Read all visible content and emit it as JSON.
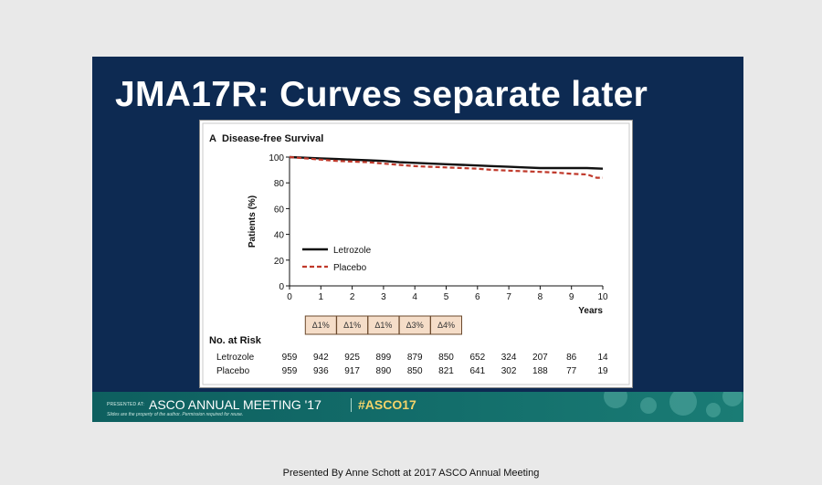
{
  "slide": {
    "title": "JMA17R:  Curves separate later",
    "presenter_caption": "Presented By Anne Schott at 2017 ASCO Annual Meeting"
  },
  "footer": {
    "presented_at_label": "PRESENTED AT:",
    "meeting_name": "ASCO ANNUAL MEETING '17",
    "hashtag": "#ASCO17",
    "disclaimer": "Slides are the property of the author. Permission required for reuse."
  },
  "colors": {
    "slide_background": "#0d2a52",
    "footer_teal": "#136e6b",
    "hashtag_yellow": "#f2d36a",
    "letrozole_line": "#111111",
    "placebo_line": "#c0392b",
    "delta_box_fill": "#f5ddc8",
    "delta_box_border": "#6b4a2e"
  },
  "chart_data": {
    "type": "line",
    "panel_letter": "A",
    "title": "Disease-free Survival",
    "xlabel": "Years",
    "ylabel": "Patients (%)",
    "xlim": [
      0,
      10
    ],
    "ylim": [
      0,
      100
    ],
    "x_ticks": [
      0,
      1,
      2,
      3,
      4,
      5,
      6,
      7,
      8,
      9,
      10
    ],
    "y_ticks": [
      0,
      20,
      40,
      60,
      80,
      100
    ],
    "grid": false,
    "legend_position": "lower-left",
    "series": [
      {
        "name": "Letrozole",
        "style": "solid",
        "color": "#111111",
        "points": [
          [
            0,
            100
          ],
          [
            0.5,
            99.5
          ],
          [
            1,
            99
          ],
          [
            1.5,
            98.5
          ],
          [
            2,
            98
          ],
          [
            2.5,
            97.5
          ],
          [
            3,
            97
          ],
          [
            3.5,
            96
          ],
          [
            4,
            95.5
          ],
          [
            4.5,
            95
          ],
          [
            5,
            94.5
          ],
          [
            5.5,
            94
          ],
          [
            6,
            93.5
          ],
          [
            6.5,
            93
          ],
          [
            7,
            92.5
          ],
          [
            7.5,
            92
          ],
          [
            8,
            91.5
          ],
          [
            8.5,
            91.5
          ],
          [
            9,
            91.5
          ],
          [
            9.5,
            91.5
          ],
          [
            10,
            91
          ]
        ]
      },
      {
        "name": "Placebo",
        "style": "dashed",
        "color": "#c0392b",
        "points": [
          [
            0,
            100
          ],
          [
            0.5,
            99
          ],
          [
            1,
            98
          ],
          [
            1.5,
            97
          ],
          [
            2,
            96.5
          ],
          [
            2.5,
            96
          ],
          [
            3,
            95
          ],
          [
            3.5,
            94
          ],
          [
            4,
            93
          ],
          [
            4.5,
            92.5
          ],
          [
            5,
            92
          ],
          [
            5.5,
            91.5
          ],
          [
            6,
            91
          ],
          [
            6.5,
            90
          ],
          [
            7,
            89.5
          ],
          [
            7.5,
            89
          ],
          [
            8,
            88.5
          ],
          [
            8.5,
            88
          ],
          [
            9,
            87
          ],
          [
            9.5,
            86.5
          ],
          [
            9.8,
            84
          ],
          [
            10,
            84
          ]
        ]
      }
    ],
    "risk_table": {
      "header": "No. at Risk",
      "deltas": [
        "Δ1%",
        "Δ1%",
        "Δ1%",
        "Δ3%",
        "Δ4%"
      ],
      "rows": [
        {
          "label": "Letrozole",
          "values": [
            "959",
            "942",
            "925",
            "899",
            "879",
            "850",
            "652",
            "324",
            "207",
            "86",
            "14"
          ]
        },
        {
          "label": "Placebo",
          "values": [
            "959",
            "936",
            "917",
            "890",
            "850",
            "821",
            "641",
            "302",
            "188",
            "77",
            "19"
          ]
        }
      ]
    }
  }
}
